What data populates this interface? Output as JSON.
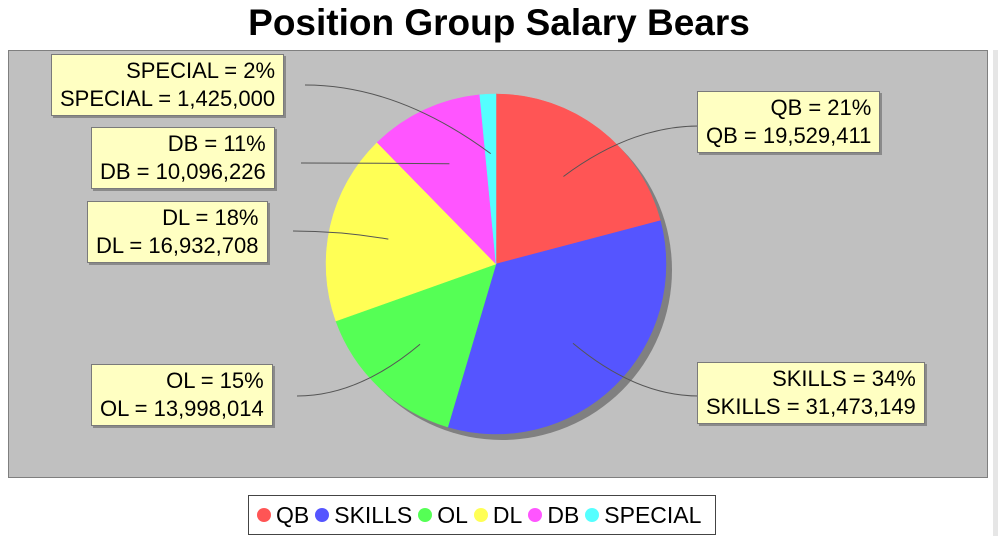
{
  "chart_data": {
    "type": "pie",
    "title": "Position Group Salary Bears",
    "series": [
      {
        "name": "QB",
        "percent_label": "21%",
        "value": 19529411,
        "value_label": "19,529,411",
        "color": "#ff5555"
      },
      {
        "name": "SKILLS",
        "percent_label": "34%",
        "value": 31473149,
        "value_label": "31,473,149",
        "color": "#5555ff"
      },
      {
        "name": "OL",
        "percent_label": "15%",
        "value": 13998014,
        "value_label": "13,998,014",
        "color": "#55ff55"
      },
      {
        "name": "DL",
        "percent_label": "18%",
        "value": 16932708,
        "value_label": "16,932,708",
        "color": "#ffff55"
      },
      {
        "name": "DB",
        "percent_label": "11%",
        "value": 10096226,
        "value_label": "10,096,226",
        "color": "#ff55ff"
      },
      {
        "name": "SPECIAL",
        "percent_label": "2%",
        "value": 1425000,
        "value_label": "1,425,000",
        "color": "#55ffff"
      }
    ],
    "legend_position": "bottom",
    "background": "#c0c0c0"
  }
}
